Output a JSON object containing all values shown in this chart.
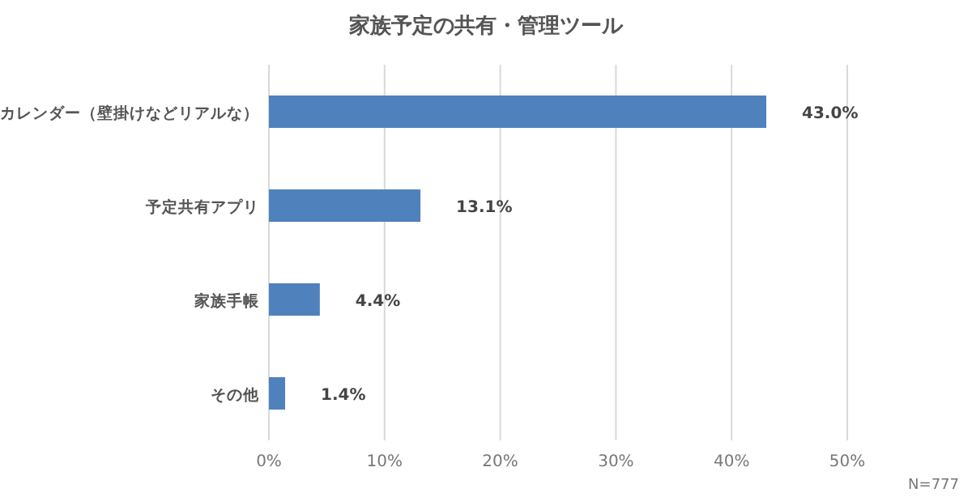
{
  "chart_data": {
    "type": "bar",
    "orientation": "horizontal",
    "title": "家族予定の共有・管理ツール",
    "categories": [
      "カレンダー（壁掛けなどリアルな）",
      "予定共有アプリ",
      "家族手帳",
      "その他"
    ],
    "values": [
      43.0,
      13.1,
      4.4,
      1.4
    ],
    "color": "#4f81bd",
    "value_labels": [
      "43.0%",
      "13.1%",
      "4.4%",
      "1.4%"
    ],
    "xlim": [
      0,
      50
    ],
    "xticks": [
      {
        "value": 0,
        "label": "0%"
      },
      {
        "value": 10,
        "label": "10%"
      },
      {
        "value": 20,
        "label": "20%"
      },
      {
        "value": 30,
        "label": "30%"
      },
      {
        "value": 40,
        "label": "40%"
      },
      {
        "value": 50,
        "label": "50%"
      }
    ],
    "grid": "x",
    "annotations": [
      "N=777"
    ]
  }
}
